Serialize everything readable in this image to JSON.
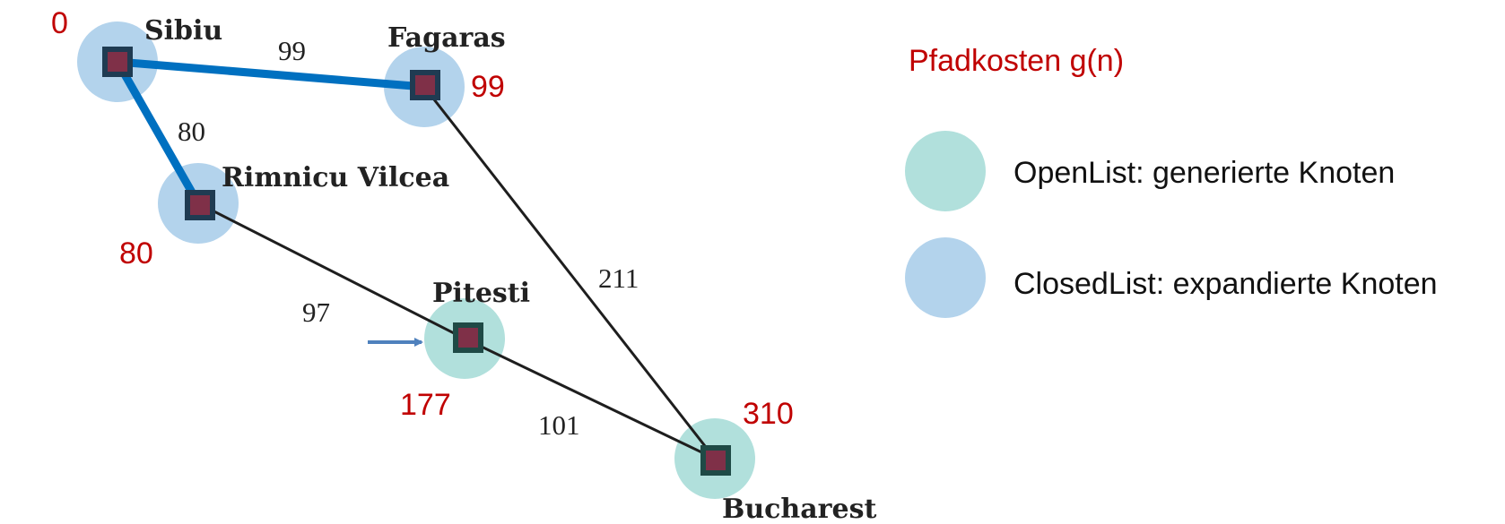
{
  "colors": {
    "open": "#b1e0dc",
    "closed": "#b3d3ec",
    "path_edge": "#0070c0",
    "edge": "#1e1e1e",
    "cost": "#c00000",
    "square_fill": "#7f3048",
    "square_border": "#1f3b52",
    "square_border_open": "#1f4a46",
    "arrow": "#4f81bd"
  },
  "nodes": [
    {
      "id": "sibiu",
      "label": "Sibiu",
      "cost": "0",
      "status": "closed"
    },
    {
      "id": "fagaras",
      "label": "Fagaras",
      "cost": "99",
      "status": "closed"
    },
    {
      "id": "rimnicu",
      "label": "Rimnicu Vilcea",
      "cost": "80",
      "status": "closed"
    },
    {
      "id": "pitesti",
      "label": "Pitesti",
      "cost": "177",
      "status": "open"
    },
    {
      "id": "bucharest",
      "label": "Bucharest",
      "cost": "310",
      "status": "open"
    }
  ],
  "edges": [
    {
      "from": "sibiu",
      "to": "fagaras",
      "weight": "99",
      "on_path": true
    },
    {
      "from": "sibiu",
      "to": "rimnicu",
      "weight": "80",
      "on_path": true
    },
    {
      "from": "fagaras",
      "to": "bucharest",
      "weight": "211",
      "on_path": false
    },
    {
      "from": "rimnicu",
      "to": "pitesti",
      "weight": "97",
      "on_path": false
    },
    {
      "from": "pitesti",
      "to": "bucharest",
      "weight": "101",
      "on_path": false
    }
  ],
  "current_node": "pitesti",
  "legend": {
    "title": "Pfadkosten g(n)",
    "open_label": "OpenList: generierte Knoten",
    "closed_label": "ClosedList: expandierte Knoten"
  }
}
